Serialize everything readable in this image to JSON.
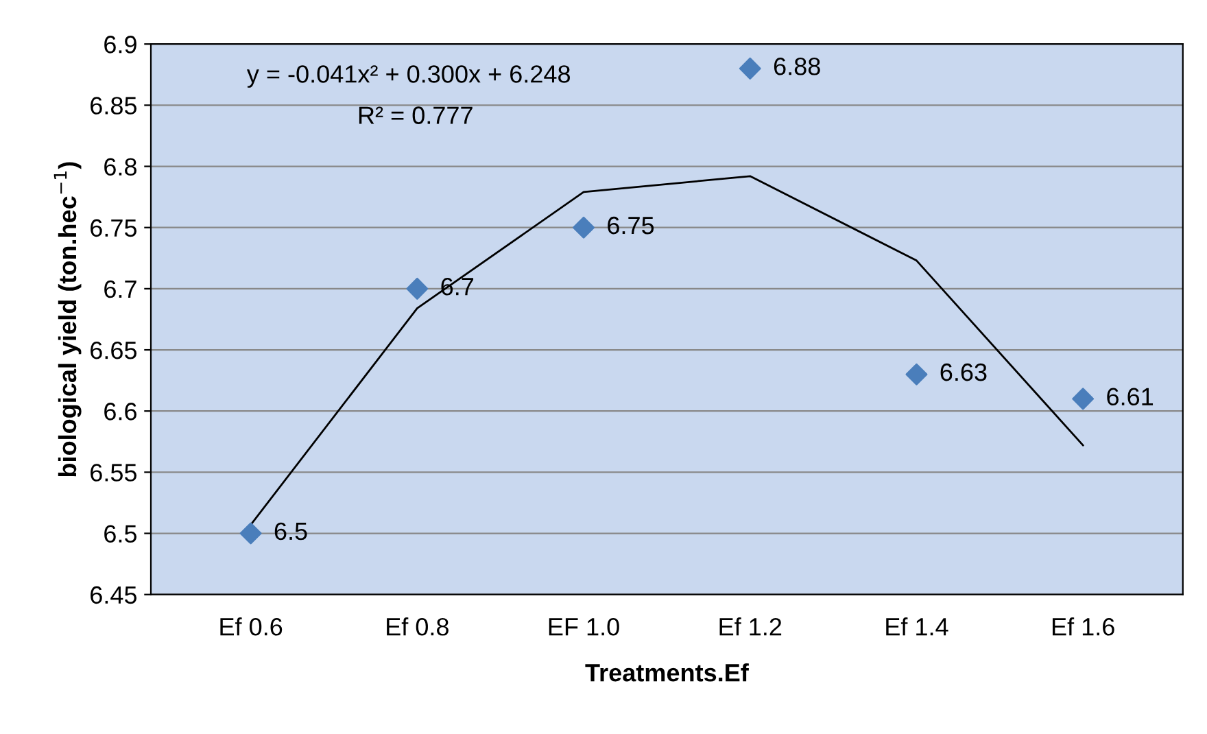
{
  "chart_data": {
    "type": "scatter",
    "xlabel": "Treatments.Ef",
    "ylabel": "biological yield (ton.hec$^{−1}$)",
    "categories": [
      "Ef 0.6",
      "Ef 0.8",
      "EF 1.0",
      "Ef 1.2",
      "Ef 1.4",
      "Ef 1.6"
    ],
    "series": [
      {
        "color": "#4a7ebb",
        "marker": "diamond",
        "values": [
          6.5,
          6.7,
          6.75,
          6.88,
          6.63,
          6.61
        ],
        "value_labels": [
          "6.5",
          "6.7",
          "6.75",
          "6.88",
          "6.63",
          "6.61"
        ]
      },
      {
        "type": "line",
        "color": "#000000",
        "marker": "none",
        "values": [
          6.507,
          6.684,
          6.779,
          6.792,
          6.723,
          6.572
        ]
      }
    ],
    "ylim": [
      6.45,
      6.9
    ],
    "yticks": [
      6.45,
      6.5,
      6.55,
      6.6,
      6.65,
      6.7,
      6.75,
      6.8,
      6.85,
      6.9
    ],
    "grid": "y",
    "annotations": [
      "y = -0.041x² + 0.300x + 6.248",
      "R² = 0.777"
    ]
  }
}
